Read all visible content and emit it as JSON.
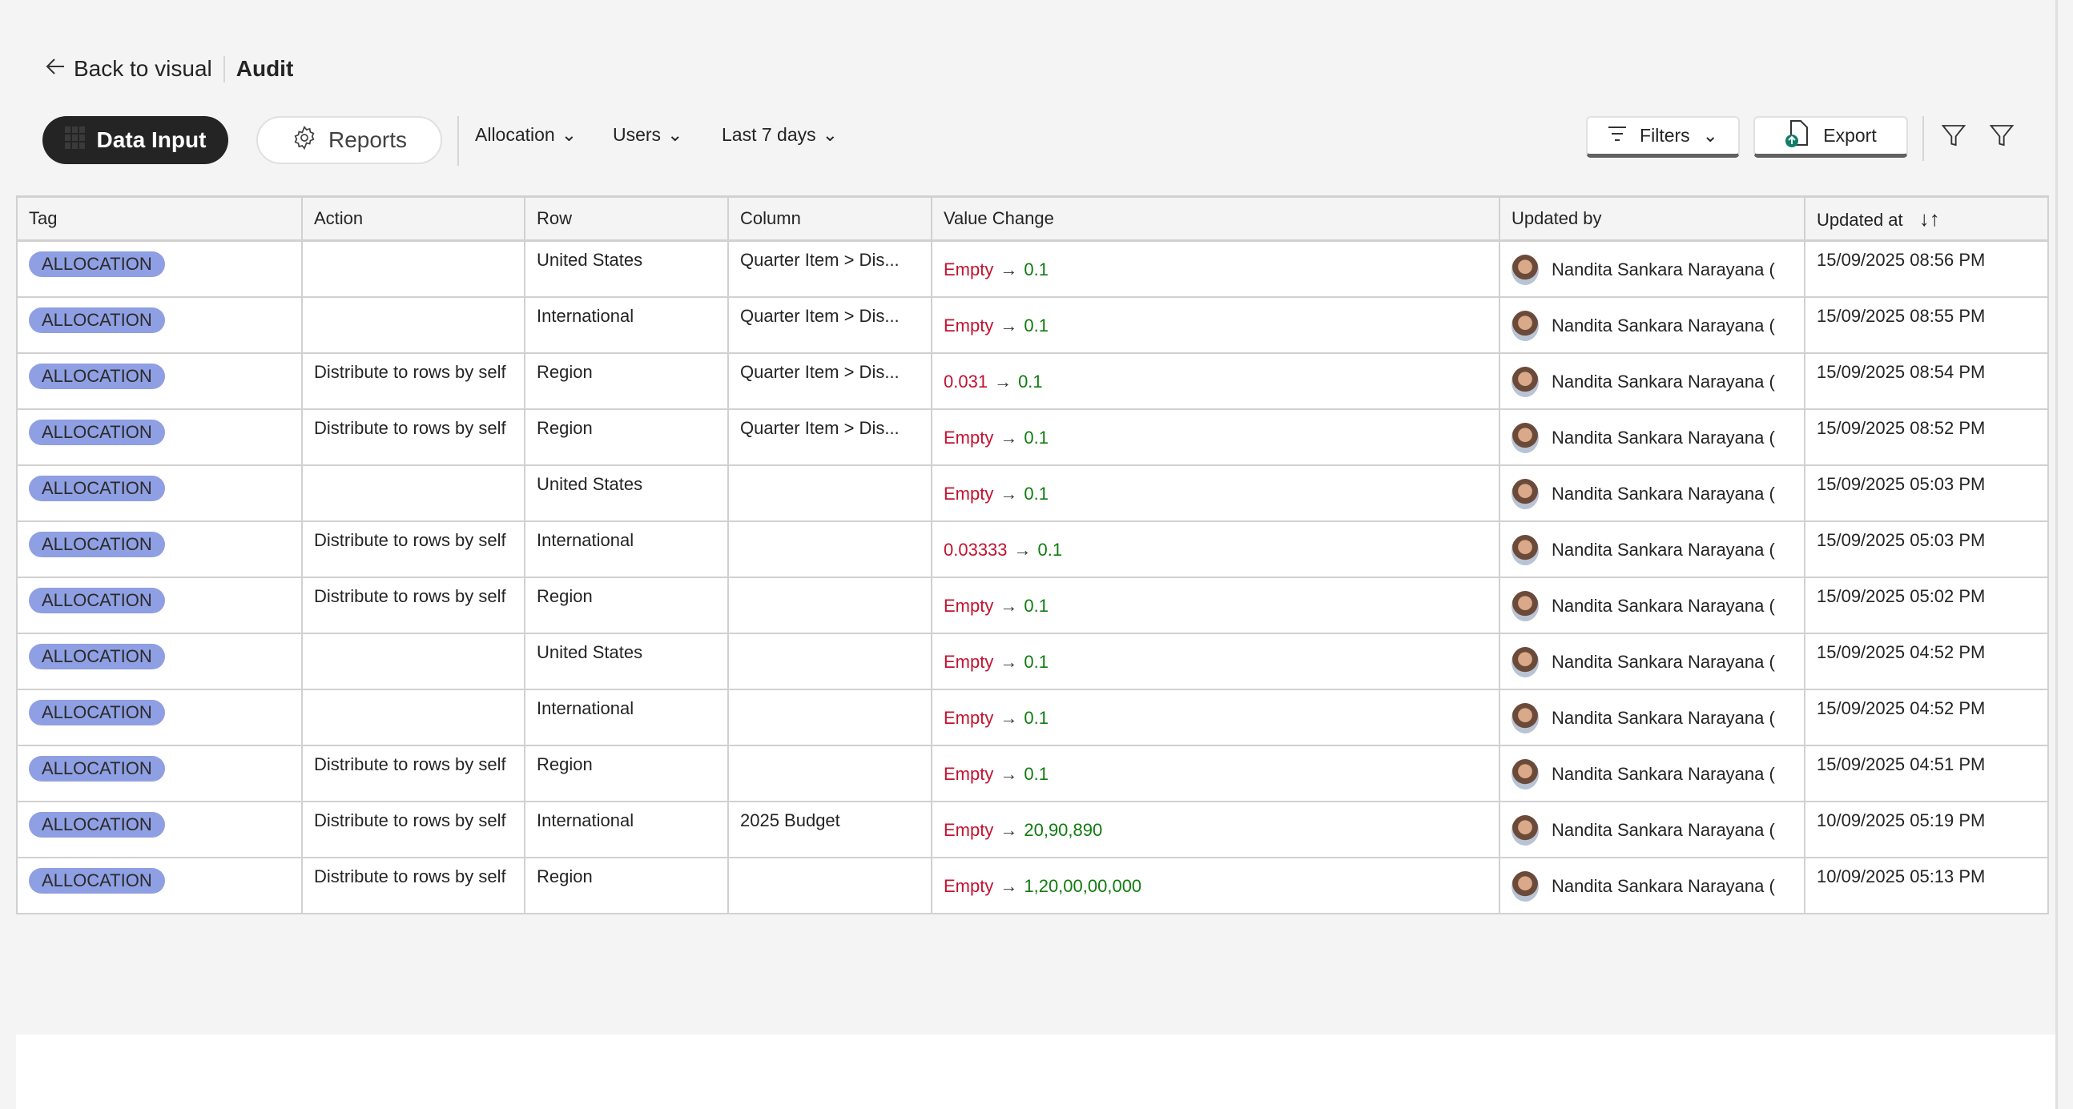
{
  "header": {
    "back_label": "Back to visual",
    "title": "Audit"
  },
  "toolbar": {
    "data_input": "Data Input",
    "reports": "Reports",
    "allocation": "Allocation",
    "users": "Users",
    "date_range": "Last 7 days",
    "filters": "Filters",
    "export": "Export"
  },
  "colors": {
    "tag_bg": "#8f9fe3",
    "old_value": "#c4122f",
    "new_value": "#107c10",
    "dark_pill": "#242424",
    "export_icon": "#107c6a"
  },
  "table": {
    "columns": [
      "Tag",
      "Action",
      "Row",
      "Column",
      "Value Change",
      "Updated by",
      "Updated at"
    ],
    "rows": [
      {
        "tag": "ALLOCATION",
        "action": "",
        "row": "United States",
        "column": "Quarter Item > Dis...",
        "old": "Empty",
        "new": "0.1",
        "user": "Nandita Sankara Narayana (",
        "at": "15/09/2025 08:56 PM"
      },
      {
        "tag": "ALLOCATION",
        "action": "",
        "row": "International",
        "column": "Quarter Item > Dis...",
        "old": "Empty",
        "new": "0.1",
        "user": "Nandita Sankara Narayana (",
        "at": "15/09/2025 08:55 PM"
      },
      {
        "tag": "ALLOCATION",
        "action": "Distribute to rows by self",
        "row": "Region",
        "column": "Quarter Item > Dis...",
        "old": "0.031",
        "new": "0.1",
        "user": "Nandita Sankara Narayana (",
        "at": "15/09/2025 08:54 PM"
      },
      {
        "tag": "ALLOCATION",
        "action": "Distribute to rows by self",
        "row": "Region",
        "column": "Quarter Item > Dis...",
        "old": "Empty",
        "new": "0.1",
        "user": "Nandita Sankara Narayana (",
        "at": "15/09/2025 08:52 PM"
      },
      {
        "tag": "ALLOCATION",
        "action": "",
        "row": "United States",
        "column": "",
        "old": "Empty",
        "new": "0.1",
        "user": "Nandita Sankara Narayana (",
        "at": "15/09/2025 05:03 PM"
      },
      {
        "tag": "ALLOCATION",
        "action": "Distribute to rows by self",
        "row": "International",
        "column": "",
        "old": "0.03333",
        "new": "0.1",
        "user": "Nandita Sankara Narayana (",
        "at": "15/09/2025 05:03 PM"
      },
      {
        "tag": "ALLOCATION",
        "action": "Distribute to rows by self",
        "row": "Region",
        "column": "",
        "old": "Empty",
        "new": "0.1",
        "user": "Nandita Sankara Narayana (",
        "at": "15/09/2025 05:02 PM"
      },
      {
        "tag": "ALLOCATION",
        "action": "",
        "row": "United States",
        "column": "",
        "old": "Empty",
        "new": "0.1",
        "user": "Nandita Sankara Narayana (",
        "at": "15/09/2025 04:52 PM"
      },
      {
        "tag": "ALLOCATION",
        "action": "",
        "row": "International",
        "column": "",
        "old": "Empty",
        "new": "0.1",
        "user": "Nandita Sankara Narayana (",
        "at": "15/09/2025 04:52 PM"
      },
      {
        "tag": "ALLOCATION",
        "action": "Distribute to rows by self",
        "row": "Region",
        "column": "",
        "old": "Empty",
        "new": "0.1",
        "user": "Nandita Sankara Narayana (",
        "at": "15/09/2025 04:51 PM"
      },
      {
        "tag": "ALLOCATION",
        "action": "Distribute to rows by self",
        "row": "International",
        "column": "2025 Budget",
        "old": "Empty",
        "new": "20,90,890",
        "user": "Nandita Sankara Narayana (",
        "at": "10/09/2025 05:19 PM"
      },
      {
        "tag": "ALLOCATION",
        "action": "Distribute to rows by self",
        "row": "Region",
        "column": "",
        "old": "Empty",
        "new": "1,20,00,00,000",
        "user": "Nandita Sankara Narayana (",
        "at": "10/09/2025 05:13 PM"
      }
    ]
  }
}
